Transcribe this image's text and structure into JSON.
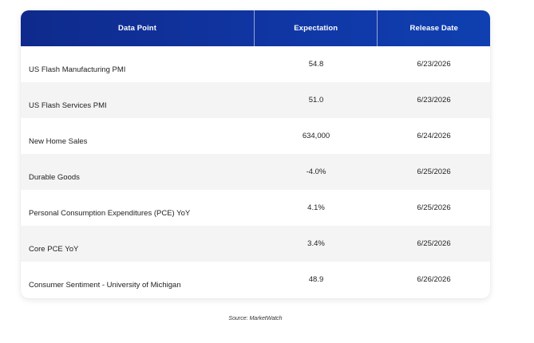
{
  "table": {
    "headers": [
      "Data Point",
      "Expectation",
      "Release Date"
    ],
    "rows": [
      {
        "point": "US Flash Manufacturing PMI",
        "expectation": "54.8",
        "date": "6/23/2026"
      },
      {
        "point": "US Flash Services PMI",
        "expectation": "51.0",
        "date": "6/23/2026"
      },
      {
        "point": "New Home Sales",
        "expectation": "634,000",
        "date": "6/24/2026"
      },
      {
        "point": "Durable Goods",
        "expectation": "-4.0%",
        "date": "6/25/2026"
      },
      {
        "point": "Personal Consumption Expenditures (PCE) YoY",
        "expectation": "4.1%",
        "date": "6/25/2026"
      },
      {
        "point": "Core PCE YoY",
        "expectation": "3.4%",
        "date": "6/25/2026"
      },
      {
        "point": "Consumer Sentiment - University of Michigan",
        "expectation": "48.9",
        "date": "6/26/2026"
      }
    ]
  },
  "source": "Source: MarketWatch",
  "colors": {
    "header_bg": "#1037a6",
    "alt_row_bg": "#f4f4f4"
  }
}
